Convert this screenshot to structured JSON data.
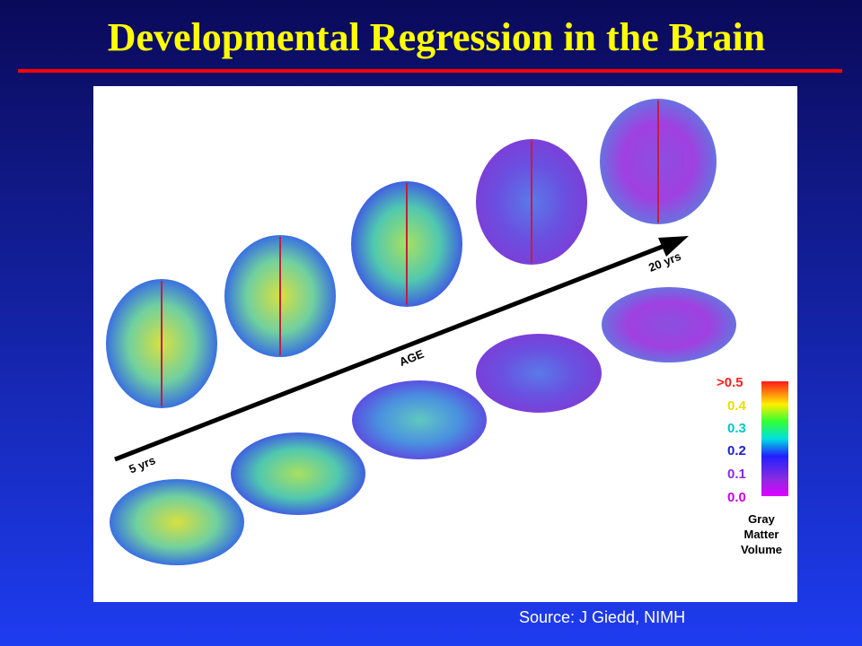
{
  "title": "Developmental Regression in the Brain",
  "figure": {
    "start_label": "5 yrs",
    "axis_label": "AGE",
    "end_label": "20 yrs",
    "legend": {
      "labels": [
        ">0.5",
        "0.4",
        "0.3",
        "0.2",
        "0.1",
        "0.0"
      ],
      "title": [
        "Gray",
        "Matter",
        "Volume"
      ]
    }
  },
  "source": "Source: J Giedd, NIMH"
}
